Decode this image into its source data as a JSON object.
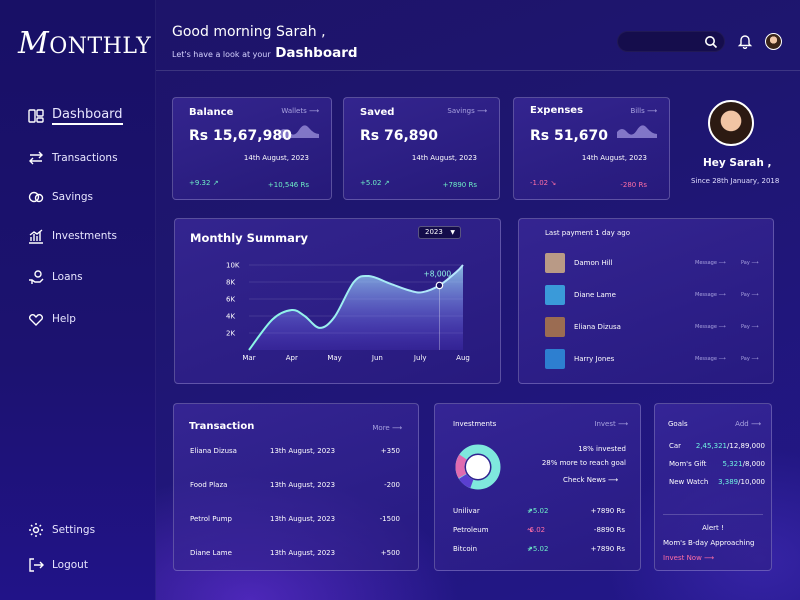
{
  "app": {
    "logo": "MONTHLY",
    "logo_initial": "M",
    "logo_rest": "ONTHLY"
  },
  "sidebar": {
    "items": [
      {
        "label": "Dashboard",
        "icon": "dashboard-icon"
      },
      {
        "label": "Transactions",
        "icon": "transfer-icon"
      },
      {
        "label": "Savings",
        "icon": "coins-icon"
      },
      {
        "label": "Investments",
        "icon": "chart-icon"
      },
      {
        "label": "Loans",
        "icon": "hand-coin-icon"
      },
      {
        "label": "Help",
        "icon": "handshake-icon"
      }
    ],
    "bottom": [
      {
        "label": "Settings",
        "icon": "gear-icon"
      },
      {
        "label": "Logout",
        "icon": "logout-icon"
      }
    ]
  },
  "header": {
    "greeting": "Good morning Sarah ,",
    "sub_prefix": "Let's have a look at your",
    "sub_strong": "Dashboard"
  },
  "stats": [
    {
      "title": "Balance",
      "link": "Wallets",
      "value": "Rs 15,67,980",
      "date": "14th August, 2023",
      "delta": "+9.32",
      "delta_dir": "up",
      "amount": "+10,546 Rs"
    },
    {
      "title": "Saved",
      "link": "Savings",
      "value": "Rs 76,890",
      "date": "14th August, 2023",
      "delta": "+5.02",
      "delta_dir": "up",
      "amount": "+7890 Rs"
    },
    {
      "title": "Expenses",
      "link": "Bills",
      "value": "Rs 51,670",
      "date": "14th August, 2023",
      "delta": "-1.02",
      "delta_dir": "down",
      "amount": "-280 Rs"
    }
  ],
  "profile": {
    "hello": "Hey Sarah ,",
    "since": "Since 28th January, 2018"
  },
  "summary": {
    "title": "Monthly Summary",
    "year": "2023",
    "annotation": "+8,000"
  },
  "chart_data": {
    "type": "area",
    "title": "Monthly Summary",
    "categories": [
      "Mar",
      "Apr",
      "May",
      "Jun",
      "July",
      "Aug"
    ],
    "x": [
      0,
      0.55,
      1.0,
      1.3,
      1.65,
      2.0,
      2.45,
      2.8,
      3.3,
      3.75,
      4.05,
      4.45,
      4.85,
      5.0
    ],
    "y": [
      0,
      3600,
      4700,
      4000,
      2600,
      3900,
      8000,
      8700,
      7800,
      7000,
      6800,
      7600,
      9200,
      10000
    ],
    "yticks": [
      "2K",
      "4K",
      "6K",
      "8K",
      "10K"
    ],
    "ylim": [
      0,
      10000
    ],
    "annotation": {
      "label": "+8,000",
      "x": 4.45,
      "y": 7600
    },
    "grid": true
  },
  "payments": {
    "header": "Last payment 1 day ago",
    "message_label": "Message",
    "pay_label": "Pay",
    "people": [
      {
        "name": "Damon Hill",
        "color": "#b99a86"
      },
      {
        "name": "Diane Lame",
        "color": "#3a9ad9"
      },
      {
        "name": "Eliana Dizusa",
        "color": "#9b6c52"
      },
      {
        "name": "Harry Jones",
        "color": "#2d7fd0"
      }
    ]
  },
  "transaction": {
    "title": "Transaction",
    "more": "More",
    "rows": [
      {
        "name": "Eliana Dizusa",
        "date": "13th August, 2023",
        "amount": "+350"
      },
      {
        "name": "Food Plaza",
        "date": "13th August, 2023",
        "amount": "-200"
      },
      {
        "name": "Petrol Pump",
        "date": "13th August, 2023",
        "amount": "-1500"
      },
      {
        "name": "Diane Lame",
        "date": "13th August, 2023",
        "amount": "+500"
      }
    ]
  },
  "investments": {
    "title": "Investments",
    "link": "Invest",
    "invested": "18% invested",
    "more": "28% more to reach goal",
    "check": "Check News",
    "rows": [
      {
        "name": "Unilivar",
        "delta": "+5.02",
        "dir": "up",
        "amount": "+7890 Rs"
      },
      {
        "name": "Petroleum",
        "delta": "-6.02",
        "dir": "down",
        "amount": "-8890 Rs"
      },
      {
        "name": "Bitcoin",
        "delta": "+5.02",
        "dir": "up",
        "amount": "+7890 Rs"
      }
    ]
  },
  "goals": {
    "title": "Goals",
    "add": "Add",
    "rows": [
      {
        "name": "Car",
        "current": "2,45,321",
        "target": "/12,89,000"
      },
      {
        "name": "Mom's Gift",
        "current": "5,321",
        "target": "/8,000"
      },
      {
        "name": "New Watch",
        "current": "3,389",
        "target": "/10,000"
      }
    ],
    "alert": "Alert !",
    "alert_msg": "Mom's B-day Approaching",
    "invest_now": "Invest Now"
  },
  "colors": {
    "green": "#6ff0c8",
    "pink": "#ff6fa6",
    "cyan": "#6ff0e0"
  }
}
